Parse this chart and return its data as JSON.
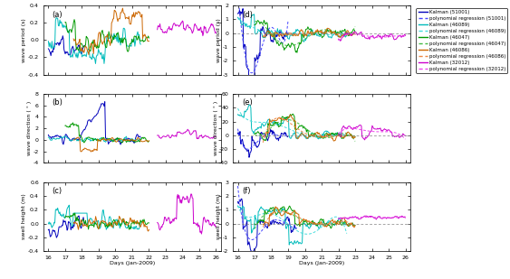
{
  "colors": {
    "51001_solid": "#0000BB",
    "51001_dash": "#4444FF",
    "46089_solid": "#00BBBB",
    "46089_dash": "#44DDDD",
    "46047_solid": "#009900",
    "46047_dash": "#44BB44",
    "46086_solid": "#CC6600",
    "46086_dash": "#EE8844",
    "32012_solid": "#CC00CC",
    "32012_dash": "#EE44EE"
  },
  "xlim": [
    15.7,
    26.3
  ],
  "xticks": [
    16,
    17,
    18,
    19,
    20,
    21,
    22,
    23,
    24,
    25,
    26
  ],
  "xlabel": "Days (Jan-2009)",
  "legend_entries": [
    {
      "label": "Kalman (51001)",
      "color": "#0000BB",
      "ls": "-"
    },
    {
      "label": "polynomial regression (51001)",
      "color": "#4444FF",
      "ls": "--"
    },
    {
      "label": "Kalman (46089)",
      "color": "#00BBBB",
      "ls": "-"
    },
    {
      "label": "polynomial regression (46089)",
      "color": "#44DDDD",
      "ls": "--"
    },
    {
      "label": "Kalman (46047)",
      "color": "#009900",
      "ls": "-"
    },
    {
      "label": "polynomial regression (46047)",
      "color": "#44BB44",
      "ls": "--"
    },
    {
      "label": "Kalman (46086)",
      "color": "#CC6600",
      "ls": "-"
    },
    {
      "label": "polynomial regression (46086)",
      "color": "#EE8844",
      "ls": "--"
    },
    {
      "label": "Kalman (32012)",
      "color": "#CC00CC",
      "ls": "-"
    },
    {
      "label": "polynomial regression (32012)",
      "color": "#EE44EE",
      "ls": "--"
    }
  ]
}
